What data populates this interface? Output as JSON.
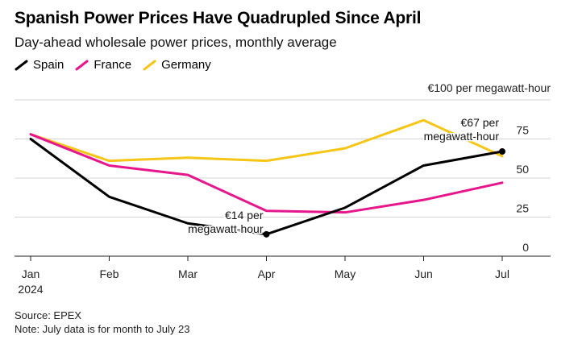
{
  "title": "Spanish Power Prices Have Quadrupled Since April",
  "subtitle": "Day-ahead wholesale power prices, monthly average",
  "source": "Source: EPEX",
  "note": "Note: July data is for month to July 23",
  "chart_data": {
    "type": "line",
    "x": [
      "Jan",
      "Feb",
      "Mar",
      "Apr",
      "May",
      "Jun",
      "Jul"
    ],
    "x_sublabel": "2024",
    "y_unit_label": "€100 per megawatt-hour",
    "yticks": [
      0,
      25,
      50,
      75
    ],
    "ylim": [
      0,
      100
    ],
    "grid": true,
    "legend_placement": "top-left",
    "series": [
      {
        "name": "Spain",
        "color": "#000000",
        "values": [
          75,
          38,
          21,
          14,
          31,
          58,
          67
        ]
      },
      {
        "name": "France",
        "color": "#e6168c",
        "values": [
          78,
          58,
          52,
          29,
          28,
          36,
          47
        ]
      },
      {
        "name": "Germany",
        "color": "#f5c518",
        "values": [
          78,
          61,
          63,
          61,
          69,
          87,
          64
        ]
      }
    ],
    "annotations": [
      {
        "series": "Spain",
        "x": "Apr",
        "y": 14,
        "lines": [
          "€14 per",
          "megawatt-hour"
        ]
      },
      {
        "series": "Spain",
        "x": "Jul",
        "y": 67,
        "lines": [
          "€67 per",
          "megawatt-hour"
        ]
      }
    ]
  }
}
